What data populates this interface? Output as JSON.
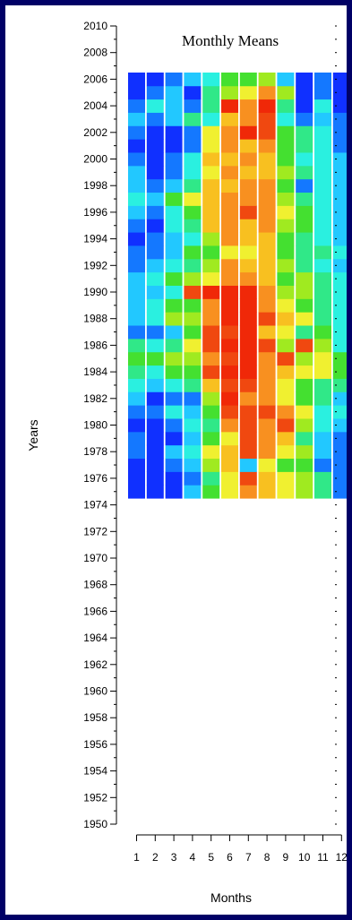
{
  "chart_data": {
    "type": "heatmap",
    "title": "Monthly Means",
    "xlabel": "Months",
    "ylabel": "Years",
    "x_categories": [
      "1",
      "2",
      "3",
      "4",
      "5",
      "6",
      "7",
      "8",
      "9",
      "10",
      "11",
      "12"
    ],
    "y_ticks": [
      1950,
      1952,
      1954,
      1956,
      1958,
      1960,
      1962,
      1964,
      1966,
      1968,
      1970,
      1972,
      1974,
      1976,
      1978,
      1980,
      1982,
      1984,
      1986,
      1988,
      1990,
      1992,
      1994,
      1996,
      1998,
      2000,
      2002,
      2004,
      2006,
      2008,
      2010
    ],
    "ylim": [
      1950,
      2010
    ],
    "years": [
      1975,
      1976,
      1977,
      1978,
      1979,
      1980,
      1981,
      1982,
      1983,
      1984,
      1985,
      1986,
      1987,
      1988,
      1989,
      1990,
      1991,
      1992,
      1993,
      1994,
      1995,
      1996,
      1997,
      1998,
      1999,
      2000,
      2001,
      2002,
      2003,
      2004,
      2005,
      2006
    ],
    "color_scale": [
      "#1030ff",
      "#1478ff",
      "#22c8ff",
      "#2af0e0",
      "#30e888",
      "#44e030",
      "#a0ea20",
      "#f0f030",
      "#f8c020",
      "#f89020",
      "#f04810",
      "#f02808"
    ],
    "values": [
      [
        0,
        0,
        0,
        2,
        5,
        7,
        9,
        8,
        7,
        6,
        4,
        1
      ],
      [
        0,
        0,
        0,
        1,
        4,
        7,
        10,
        8,
        7,
        6,
        4,
        1
      ],
      [
        0,
        0,
        1,
        2,
        6,
        8,
        2,
        7,
        5,
        5,
        1,
        1
      ],
      [
        1,
        0,
        2,
        3,
        7,
        8,
        10,
        9,
        7,
        6,
        2,
        1
      ],
      [
        1,
        0,
        0,
        2,
        5,
        7,
        10,
        9,
        8,
        4,
        2,
        1
      ],
      [
        0,
        0,
        1,
        3,
        4,
        9,
        10,
        9,
        10,
        6,
        3,
        2
      ],
      [
        1,
        1,
        3,
        2,
        5,
        10,
        10,
        10,
        9,
        7,
        3,
        3
      ],
      [
        2,
        0,
        1,
        1,
        6,
        11,
        9,
        9,
        7,
        5,
        4,
        2
      ],
      [
        3,
        2,
        3,
        4,
        8,
        10,
        10,
        9,
        7,
        5,
        4,
        4
      ],
      [
        4,
        3,
        5,
        5,
        10,
        11,
        11,
        9,
        8,
        7,
        7,
        5
      ],
      [
        5,
        5,
        6,
        6,
        9,
        10,
        11,
        9,
        10,
        6,
        7,
        5
      ],
      [
        4,
        3,
        4,
        7,
        10,
        11,
        11,
        10,
        6,
        10,
        6,
        3
      ],
      [
        1,
        1,
        2,
        5,
        10,
        10,
        11,
        8,
        7,
        4,
        5,
        3
      ],
      [
        2,
        3,
        6,
        6,
        9,
        11,
        11,
        10,
        8,
        7,
        4,
        3
      ],
      [
        2,
        3,
        5,
        5,
        9,
        11,
        11,
        9,
        7,
        5,
        4,
        3
      ],
      [
        2,
        2,
        3,
        10,
        11,
        11,
        11,
        9,
        6,
        6,
        4,
        3
      ],
      [
        2,
        3,
        5,
        6,
        7,
        9,
        9,
        8,
        5,
        6,
        4,
        3
      ],
      [
        1,
        2,
        3,
        4,
        6,
        9,
        8,
        8,
        6,
        4,
        3,
        2
      ],
      [
        1,
        1,
        2,
        5,
        5,
        7,
        7,
        8,
        5,
        4,
        4,
        3
      ],
      [
        0,
        1,
        2,
        3,
        6,
        9,
        8,
        8,
        5,
        4,
        3,
        2
      ],
      [
        1,
        0,
        3,
        4,
        8,
        9,
        8,
        9,
        6,
        5,
        3,
        2
      ],
      [
        2,
        1,
        3,
        5,
        8,
        9,
        10,
        9,
        7,
        5,
        3,
        2
      ],
      [
        3,
        2,
        5,
        7,
        8,
        9,
        9,
        9,
        6,
        4,
        3,
        2
      ],
      [
        2,
        1,
        2,
        4,
        8,
        8,
        9,
        9,
        5,
        1,
        3,
        2
      ],
      [
        2,
        0,
        1,
        3,
        7,
        9,
        8,
        8,
        6,
        4,
        3,
        2
      ],
      [
        1,
        0,
        1,
        3,
        8,
        8,
        9,
        8,
        5,
        3,
        3,
        2
      ],
      [
        0,
        0,
        0,
        1,
        7,
        9,
        8,
        9,
        5,
        4,
        3,
        1
      ],
      [
        1,
        0,
        0,
        1,
        7,
        9,
        11,
        10,
        5,
        4,
        3,
        1
      ],
      [
        2,
        1,
        2,
        4,
        3,
        8,
        9,
        10,
        3,
        1,
        2,
        1
      ],
      [
        1,
        3,
        2,
        1,
        4,
        11,
        9,
        11,
        4,
        0,
        3,
        0
      ],
      [
        0,
        1,
        2,
        0,
        4,
        6,
        7,
        9,
        6,
        0,
        1,
        0
      ],
      [
        0,
        0,
        1,
        2,
        3,
        5,
        5,
        6,
        2,
        0,
        1,
        0
      ]
    ]
  }
}
